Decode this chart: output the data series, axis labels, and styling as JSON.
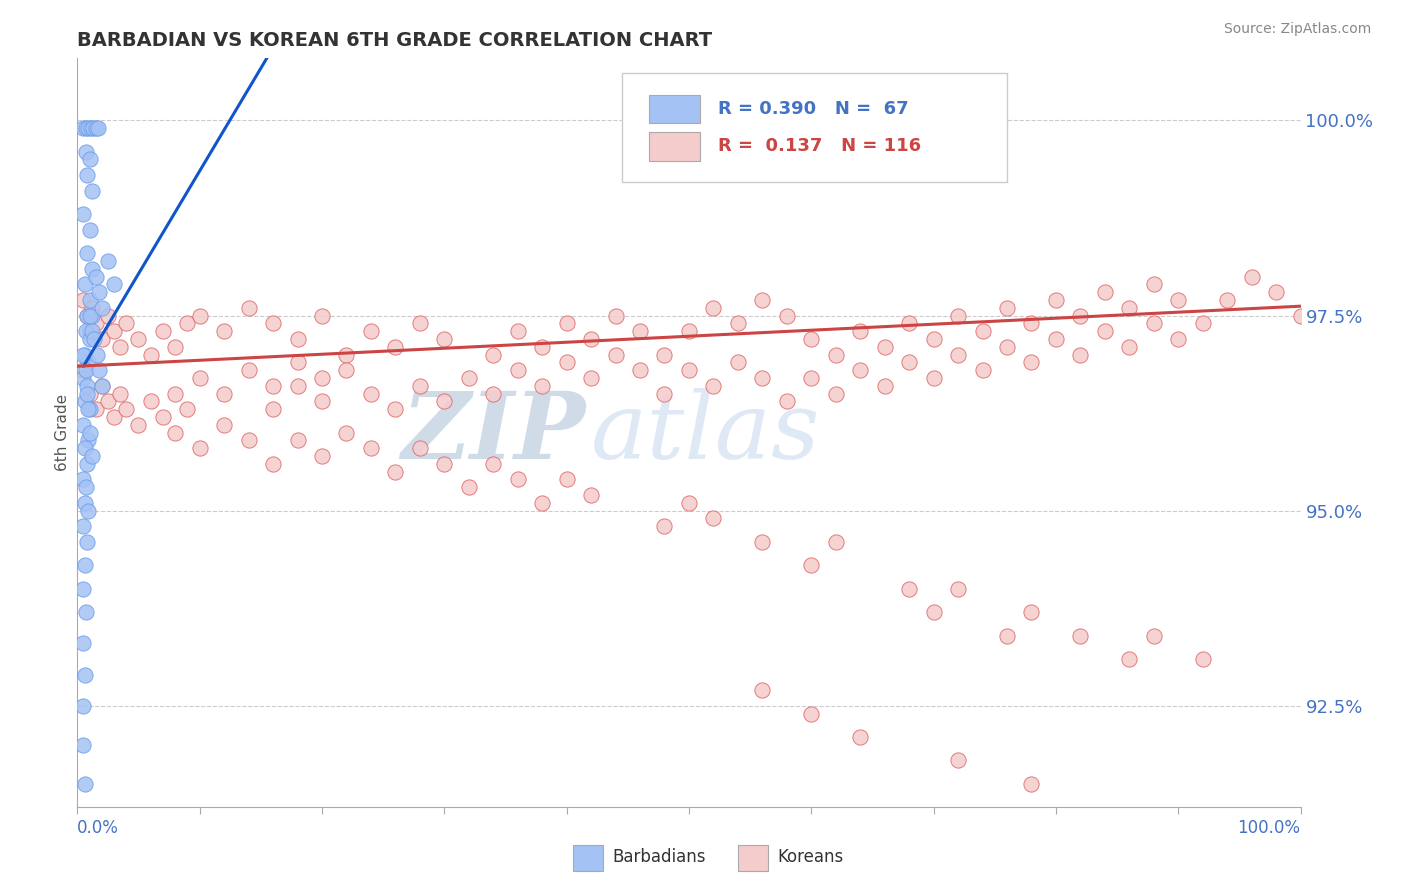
{
  "title": "BARBADIAN VS KOREAN 6TH GRADE CORRELATION CHART",
  "source": "Source: ZipAtlas.com",
  "ylabel": "6th Grade",
  "y_ticks": [
    92.5,
    95.0,
    97.5,
    100.0
  ],
  "x_range": [
    0.0,
    1.0
  ],
  "y_range": [
    91.2,
    100.8
  ],
  "barbadian_color": "#a4c2f4",
  "korean_color": "#f4cccc",
  "barbadian_edge": "#6d9eeb",
  "korean_edge": "#e06666",
  "blue_line_color": "#1155cc",
  "pink_line_color": "#cc4444",
  "ytick_color": "#4472c4",
  "watermark_zip": "ZIP",
  "watermark_atlas": "atlas",
  "background_color": "#ffffff",
  "grid_color": "#cccccc",
  "marker_size": 120,
  "blue_line": [
    [
      0.005,
      96.85
    ],
    [
      0.155,
      100.8
    ]
  ],
  "pink_line": [
    [
      0.0,
      96.85
    ],
    [
      1.0,
      97.62
    ]
  ],
  "barbadian_points": [
    [
      0.005,
      99.9
    ],
    [
      0.007,
      99.9
    ],
    [
      0.009,
      99.9
    ],
    [
      0.011,
      99.9
    ],
    [
      0.013,
      99.9
    ],
    [
      0.015,
      99.9
    ],
    [
      0.017,
      99.9
    ],
    [
      0.007,
      99.6
    ],
    [
      0.01,
      99.5
    ],
    [
      0.008,
      99.3
    ],
    [
      0.012,
      99.1
    ],
    [
      0.005,
      98.8
    ],
    [
      0.01,
      98.6
    ],
    [
      0.008,
      98.3
    ],
    [
      0.012,
      98.1
    ],
    [
      0.006,
      97.9
    ],
    [
      0.01,
      97.7
    ],
    [
      0.008,
      97.5
    ],
    [
      0.012,
      97.5
    ],
    [
      0.007,
      97.3
    ],
    [
      0.01,
      97.2
    ],
    [
      0.006,
      97.0
    ],
    [
      0.009,
      96.9
    ],
    [
      0.005,
      96.7
    ],
    [
      0.008,
      96.6
    ],
    [
      0.006,
      96.4
    ],
    [
      0.01,
      96.3
    ],
    [
      0.005,
      96.1
    ],
    [
      0.009,
      95.9
    ],
    [
      0.006,
      95.8
    ],
    [
      0.008,
      95.6
    ],
    [
      0.005,
      95.4
    ],
    [
      0.007,
      95.3
    ],
    [
      0.006,
      95.1
    ],
    [
      0.009,
      95.0
    ],
    [
      0.005,
      94.8
    ],
    [
      0.008,
      94.6
    ],
    [
      0.006,
      94.3
    ],
    [
      0.005,
      94.0
    ],
    [
      0.007,
      93.7
    ],
    [
      0.005,
      93.3
    ],
    [
      0.006,
      92.9
    ],
    [
      0.005,
      92.5
    ],
    [
      0.005,
      92.0
    ],
    [
      0.006,
      91.5
    ],
    [
      0.005,
      97.0
    ],
    [
      0.007,
      96.8
    ],
    [
      0.008,
      96.5
    ],
    [
      0.009,
      96.3
    ],
    [
      0.01,
      96.0
    ],
    [
      0.012,
      95.7
    ],
    [
      0.01,
      97.5
    ],
    [
      0.012,
      97.3
    ],
    [
      0.014,
      97.2
    ],
    [
      0.016,
      97.0
    ],
    [
      0.018,
      96.8
    ],
    [
      0.02,
      96.6
    ],
    [
      0.015,
      98.0
    ],
    [
      0.018,
      97.8
    ],
    [
      0.02,
      97.6
    ],
    [
      0.025,
      98.2
    ],
    [
      0.03,
      97.9
    ]
  ],
  "korean_points": [
    [
      0.005,
      97.7
    ],
    [
      0.008,
      97.5
    ],
    [
      0.01,
      97.3
    ],
    [
      0.012,
      97.6
    ],
    [
      0.015,
      97.4
    ],
    [
      0.02,
      97.2
    ],
    [
      0.025,
      97.5
    ],
    [
      0.03,
      97.3
    ],
    [
      0.035,
      97.1
    ],
    [
      0.04,
      97.4
    ],
    [
      0.05,
      97.2
    ],
    [
      0.06,
      97.0
    ],
    [
      0.07,
      97.3
    ],
    [
      0.08,
      97.1
    ],
    [
      0.09,
      97.4
    ],
    [
      0.1,
      97.5
    ],
    [
      0.12,
      97.3
    ],
    [
      0.14,
      97.6
    ],
    [
      0.16,
      97.4
    ],
    [
      0.18,
      97.2
    ],
    [
      0.2,
      97.5
    ],
    [
      0.005,
      96.8
    ],
    [
      0.01,
      96.5
    ],
    [
      0.015,
      96.3
    ],
    [
      0.02,
      96.6
    ],
    [
      0.025,
      96.4
    ],
    [
      0.03,
      96.2
    ],
    [
      0.035,
      96.5
    ],
    [
      0.04,
      96.3
    ],
    [
      0.05,
      96.1
    ],
    [
      0.06,
      96.4
    ],
    [
      0.07,
      96.2
    ],
    [
      0.08,
      96.5
    ],
    [
      0.09,
      96.3
    ],
    [
      0.1,
      96.7
    ],
    [
      0.12,
      96.5
    ],
    [
      0.14,
      96.8
    ],
    [
      0.16,
      96.6
    ],
    [
      0.18,
      96.9
    ],
    [
      0.2,
      96.7
    ],
    [
      0.22,
      97.0
    ],
    [
      0.24,
      97.3
    ],
    [
      0.26,
      97.1
    ],
    [
      0.28,
      97.4
    ],
    [
      0.3,
      97.2
    ],
    [
      0.22,
      96.8
    ],
    [
      0.24,
      96.5
    ],
    [
      0.26,
      96.3
    ],
    [
      0.28,
      96.6
    ],
    [
      0.3,
      96.4
    ],
    [
      0.32,
      96.7
    ],
    [
      0.34,
      97.0
    ],
    [
      0.36,
      97.3
    ],
    [
      0.38,
      97.1
    ],
    [
      0.4,
      97.4
    ],
    [
      0.34,
      96.5
    ],
    [
      0.36,
      96.8
    ],
    [
      0.38,
      96.6
    ],
    [
      0.4,
      96.9
    ],
    [
      0.42,
      97.2
    ],
    [
      0.44,
      97.5
    ],
    [
      0.46,
      97.3
    ],
    [
      0.48,
      97.0
    ],
    [
      0.5,
      97.3
    ],
    [
      0.52,
      97.6
    ],
    [
      0.54,
      97.4
    ],
    [
      0.56,
      97.7
    ],
    [
      0.58,
      97.5
    ],
    [
      0.6,
      97.2
    ],
    [
      0.42,
      96.7
    ],
    [
      0.44,
      97.0
    ],
    [
      0.46,
      96.8
    ],
    [
      0.48,
      96.5
    ],
    [
      0.5,
      96.8
    ],
    [
      0.52,
      96.6
    ],
    [
      0.54,
      96.9
    ],
    [
      0.56,
      96.7
    ],
    [
      0.58,
      96.4
    ],
    [
      0.6,
      96.7
    ],
    [
      0.62,
      97.0
    ],
    [
      0.64,
      97.3
    ],
    [
      0.66,
      97.1
    ],
    [
      0.68,
      97.4
    ],
    [
      0.7,
      97.2
    ],
    [
      0.72,
      97.5
    ],
    [
      0.74,
      97.3
    ],
    [
      0.76,
      97.6
    ],
    [
      0.78,
      97.4
    ],
    [
      0.8,
      97.7
    ],
    [
      0.82,
      97.5
    ],
    [
      0.84,
      97.8
    ],
    [
      0.86,
      97.6
    ],
    [
      0.88,
      97.9
    ],
    [
      0.9,
      97.7
    ],
    [
      0.92,
      97.4
    ],
    [
      0.94,
      97.7
    ],
    [
      0.96,
      98.0
    ],
    [
      0.98,
      97.8
    ],
    [
      1.0,
      97.5
    ],
    [
      0.62,
      96.5
    ],
    [
      0.64,
      96.8
    ],
    [
      0.66,
      96.6
    ],
    [
      0.68,
      96.9
    ],
    [
      0.7,
      96.7
    ],
    [
      0.72,
      97.0
    ],
    [
      0.74,
      96.8
    ],
    [
      0.76,
      97.1
    ],
    [
      0.78,
      96.9
    ],
    [
      0.8,
      97.2
    ],
    [
      0.82,
      97.0
    ],
    [
      0.84,
      97.3
    ],
    [
      0.86,
      97.1
    ],
    [
      0.88,
      97.4
    ],
    [
      0.9,
      97.2
    ],
    [
      0.16,
      96.3
    ],
    [
      0.18,
      96.6
    ],
    [
      0.2,
      96.4
    ],
    [
      0.08,
      96.0
    ],
    [
      0.1,
      95.8
    ],
    [
      0.12,
      96.1
    ],
    [
      0.14,
      95.9
    ],
    [
      0.16,
      95.6
    ],
    [
      0.18,
      95.9
    ],
    [
      0.2,
      95.7
    ],
    [
      0.22,
      96.0
    ],
    [
      0.24,
      95.8
    ],
    [
      0.26,
      95.5
    ],
    [
      0.28,
      95.8
    ],
    [
      0.3,
      95.6
    ],
    [
      0.32,
      95.3
    ],
    [
      0.34,
      95.6
    ],
    [
      0.36,
      95.4
    ],
    [
      0.38,
      95.1
    ],
    [
      0.4,
      95.4
    ],
    [
      0.42,
      95.2
    ],
    [
      0.48,
      94.8
    ],
    [
      0.5,
      95.1
    ],
    [
      0.52,
      94.9
    ],
    [
      0.56,
      94.6
    ],
    [
      0.6,
      94.3
    ],
    [
      0.62,
      94.6
    ],
    [
      0.68,
      94.0
    ],
    [
      0.7,
      93.7
    ],
    [
      0.72,
      94.0
    ],
    [
      0.76,
      93.4
    ],
    [
      0.78,
      93.7
    ],
    [
      0.82,
      93.4
    ],
    [
      0.86,
      93.1
    ],
    [
      0.88,
      93.4
    ],
    [
      0.92,
      93.1
    ],
    [
      0.56,
      92.7
    ],
    [
      0.6,
      92.4
    ],
    [
      0.64,
      92.1
    ],
    [
      0.72,
      91.8
    ],
    [
      0.78,
      91.5
    ]
  ]
}
